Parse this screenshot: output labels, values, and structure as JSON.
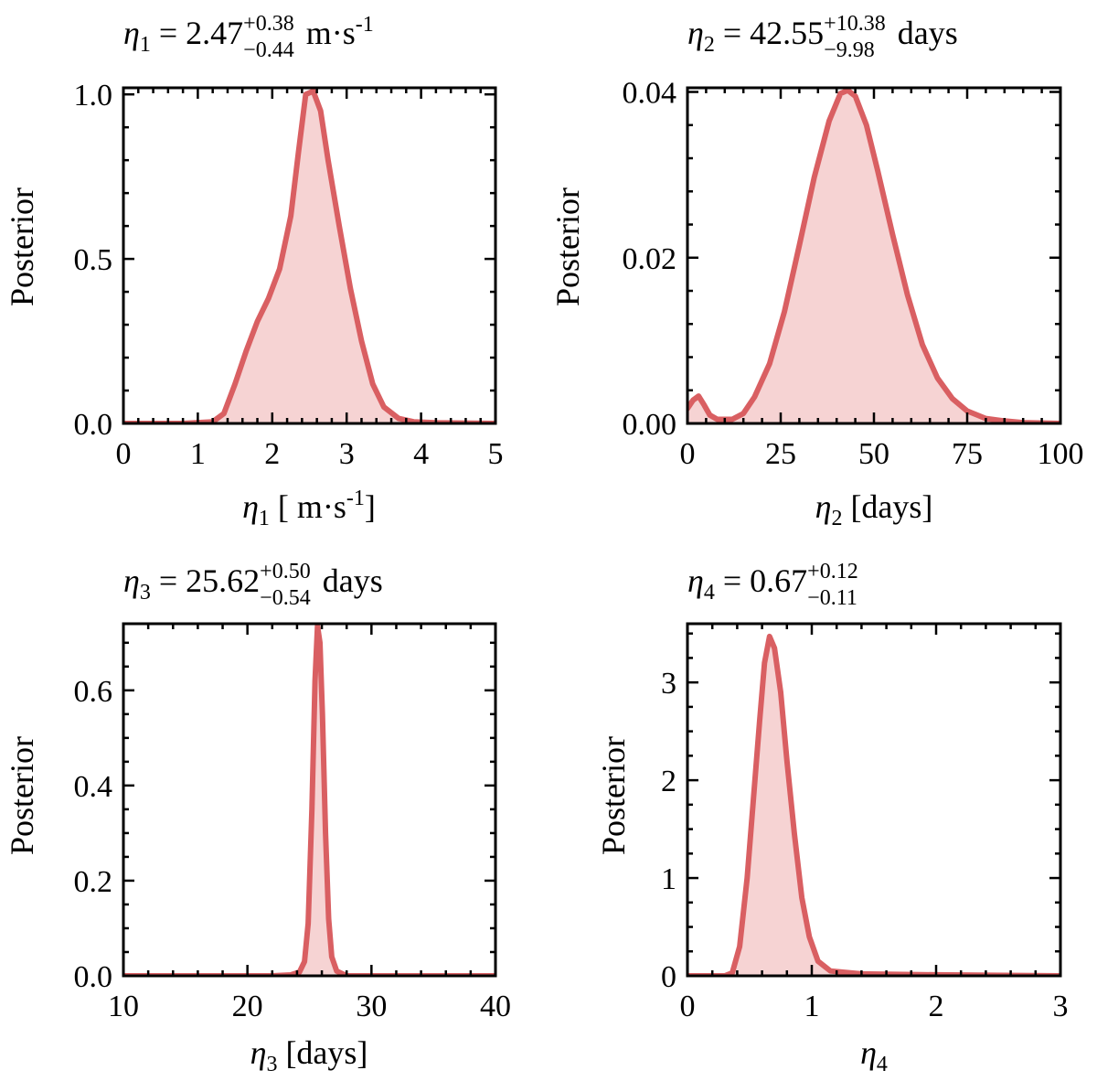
{
  "style": {
    "line_color": "#d95f62",
    "fill_color": "#f6d3d3"
  },
  "chart_data": [
    {
      "type": "area",
      "title": {
        "sym": "η",
        "sub": "1",
        "eq": " = 2.47",
        "sup": "+0.38",
        "subsc": "−0.44",
        "unit": " m·s",
        "unit_sup": "-1"
      },
      "xlabel": {
        "sym": "η",
        "sub": "1",
        "unit": " [ m·s",
        "unit_sup": "-1",
        "close": "]"
      },
      "ylabel": "Posterior",
      "xlim": [
        0,
        5
      ],
      "ylim": [
        0,
        1.02
      ],
      "xticks": [
        0,
        1,
        2,
        3,
        4,
        5
      ],
      "xtick_labels": [
        "0",
        "1",
        "2",
        "3",
        "4",
        "5"
      ],
      "yticks": [
        0,
        0.5,
        1.0
      ],
      "ytick_labels": [
        "0.0",
        "0.5",
        "1.0"
      ],
      "x_minor": 0.2,
      "y_minor": 0.1,
      "x": [
        0,
        0.8,
        1.2,
        1.35,
        1.5,
        1.65,
        1.8,
        1.95,
        2.1,
        2.25,
        2.35,
        2.45,
        2.55,
        2.65,
        2.75,
        2.9,
        3.05,
        3.2,
        3.35,
        3.5,
        3.7,
        3.9,
        4.2,
        5.0
      ],
      "y": [
        0,
        0,
        0.005,
        0.03,
        0.12,
        0.22,
        0.31,
        0.38,
        0.47,
        0.63,
        0.82,
        1.0,
        1.01,
        0.95,
        0.8,
        0.6,
        0.41,
        0.25,
        0.12,
        0.05,
        0.015,
        0.005,
        0.002,
        0
      ]
    },
    {
      "type": "area",
      "title": {
        "sym": "η",
        "sub": "2",
        "eq": " = 42.55",
        "sup": "+10.38",
        "subsc": "−9.98",
        "unit": " days",
        "unit_sup": ""
      },
      "xlabel": {
        "sym": "η",
        "sub": "2",
        "unit": " [days]",
        "unit_sup": "",
        "close": ""
      },
      "ylabel": "Posterior",
      "xlim": [
        0,
        100
      ],
      "ylim": [
        0,
        0.0405
      ],
      "xticks": [
        0,
        25,
        50,
        75,
        100
      ],
      "xtick_labels": [
        "0",
        "25",
        "50",
        "75",
        "100"
      ],
      "yticks": [
        0,
        0.02,
        0.04
      ],
      "ytick_labels": [
        "0.00",
        "0.02",
        "0.04"
      ],
      "x_minor": 5,
      "y_minor": 0.004,
      "x": [
        0,
        1.5,
        3,
        4.5,
        6,
        8,
        12,
        15,
        18,
        22,
        26,
        30,
        34,
        38,
        41,
        43,
        45,
        48,
        51,
        55,
        59,
        63,
        67,
        71,
        75,
        80,
        85,
        90,
        100
      ],
      "y": [
        0.0018,
        0.0028,
        0.0033,
        0.0022,
        0.001,
        0.0005,
        0.0005,
        0.0012,
        0.0032,
        0.0072,
        0.0135,
        0.0215,
        0.0297,
        0.0365,
        0.0398,
        0.0402,
        0.0395,
        0.036,
        0.0305,
        0.0228,
        0.0155,
        0.0095,
        0.0055,
        0.003,
        0.0015,
        0.0006,
        0.0003,
        0.0001,
        0
      ]
    },
    {
      "type": "area",
      "title": {
        "sym": "η",
        "sub": "3",
        "eq": " = 25.62",
        "sup": "+0.50",
        "subsc": "−0.54",
        "unit": " days",
        "unit_sup": ""
      },
      "xlabel": {
        "sym": "η",
        "sub": "3",
        "unit": " [days]",
        "unit_sup": "",
        "close": ""
      },
      "ylabel": "Posterior",
      "xlim": [
        10,
        40
      ],
      "ylim": [
        0,
        0.74
      ],
      "xticks": [
        10,
        20,
        30,
        40
      ],
      "xtick_labels": [
        "10",
        "20",
        "30",
        "40"
      ],
      "yticks": [
        0,
        0.2,
        0.4,
        0.6
      ],
      "ytick_labels": [
        "0.0",
        "0.2",
        "0.4",
        "0.6"
      ],
      "x_minor": 2,
      "y_minor": 0.05,
      "x": [
        10,
        22,
        23.5,
        24.2,
        24.6,
        24.9,
        25.2,
        25.45,
        25.65,
        25.85,
        26.05,
        26.3,
        26.55,
        26.8,
        27.2,
        28,
        40
      ],
      "y": [
        0,
        0,
        0.002,
        0.008,
        0.03,
        0.11,
        0.35,
        0.62,
        0.735,
        0.7,
        0.55,
        0.3,
        0.12,
        0.04,
        0.01,
        0,
        0
      ]
    },
    {
      "type": "area",
      "title": {
        "sym": "η",
        "sub": "4",
        "eq": " = 0.67",
        "sup": "+0.12",
        "subsc": "−0.11",
        "unit": "",
        "unit_sup": ""
      },
      "xlabel": {
        "sym": "η",
        "sub": "4",
        "unit": "",
        "unit_sup": "",
        "close": ""
      },
      "ylabel": "Posterior",
      "xlim": [
        0,
        3
      ],
      "ylim": [
        0,
        3.6
      ],
      "xticks": [
        0,
        1,
        2,
        3
      ],
      "xtick_labels": [
        "0",
        "1",
        "2",
        "3"
      ],
      "yticks": [
        0,
        1,
        2,
        3
      ],
      "ytick_labels": [
        "0",
        "1",
        "2",
        "3"
      ],
      "x_minor": 0.2,
      "y_minor": 0.25,
      "x": [
        0,
        0.3,
        0.36,
        0.42,
        0.48,
        0.53,
        0.58,
        0.62,
        0.66,
        0.7,
        0.75,
        0.8,
        0.86,
        0.92,
        0.98,
        1.05,
        1.15,
        1.4,
        2.0,
        3.0
      ],
      "y": [
        0,
        0,
        0.03,
        0.3,
        1.0,
        1.8,
        2.6,
        3.2,
        3.47,
        3.35,
        2.9,
        2.2,
        1.45,
        0.8,
        0.4,
        0.15,
        0.05,
        0.02,
        0.01,
        0
      ]
    }
  ]
}
